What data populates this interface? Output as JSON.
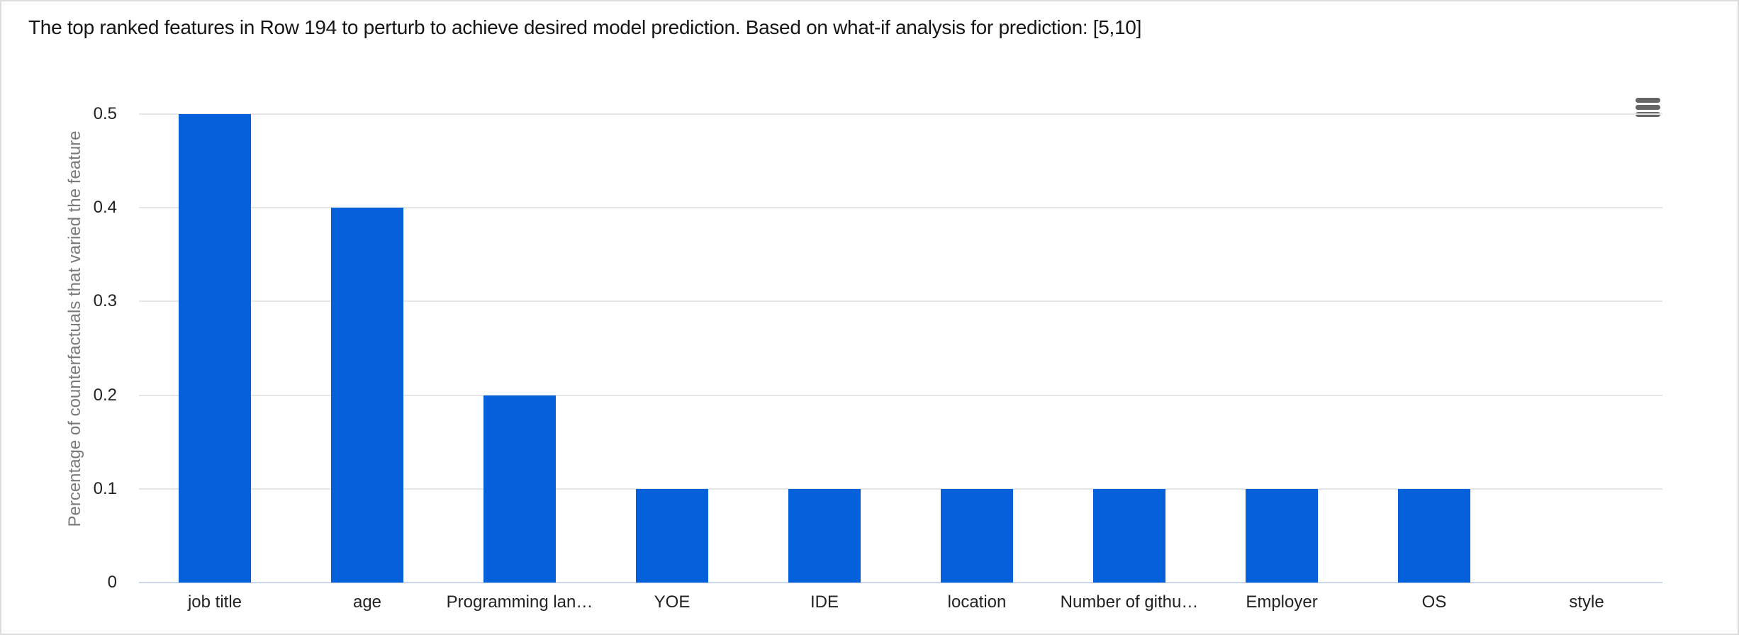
{
  "header": {
    "title": "The top ranked features in Row 194 to perturb to achieve desired model prediction. Based on what-if analysis for prediction: [5,10]"
  },
  "toolbar": {
    "menu_icon": "hamburger-menu-icon"
  },
  "colors": {
    "bar": "#0560dc",
    "gridline": "#e6e6e6",
    "axis_line": "#ccd6eb",
    "menu_icon": "#666666",
    "y_axis_title": "#7a7a7a",
    "tick_label": "#222222",
    "title_text": "#161616",
    "panel_border": "#dcdcdc",
    "background": "#ffffff"
  },
  "chart_data": {
    "type": "bar",
    "title": "",
    "categories": [
      "job title",
      "age",
      "Programming lan…",
      "YOE",
      "IDE",
      "location",
      "Number of githu…",
      "Employer",
      "OS",
      "style"
    ],
    "values": [
      0.5,
      0.4,
      0.2,
      0.1,
      0.1,
      0.1,
      0.1,
      0.1,
      0.1,
      0
    ],
    "xlabel": "",
    "ylabel": "Percentage of counterfactuals that varied the feature",
    "ylim": [
      0,
      0.5
    ],
    "yticks": [
      0,
      0.1,
      0.2,
      0.3,
      0.4,
      0.5
    ],
    "ytick_labels": [
      "0",
      "0.1",
      "0.2",
      "0.3",
      "0.4",
      "0.5"
    ],
    "grid": true,
    "legend": "none",
    "bar_color": "#0560dc"
  }
}
